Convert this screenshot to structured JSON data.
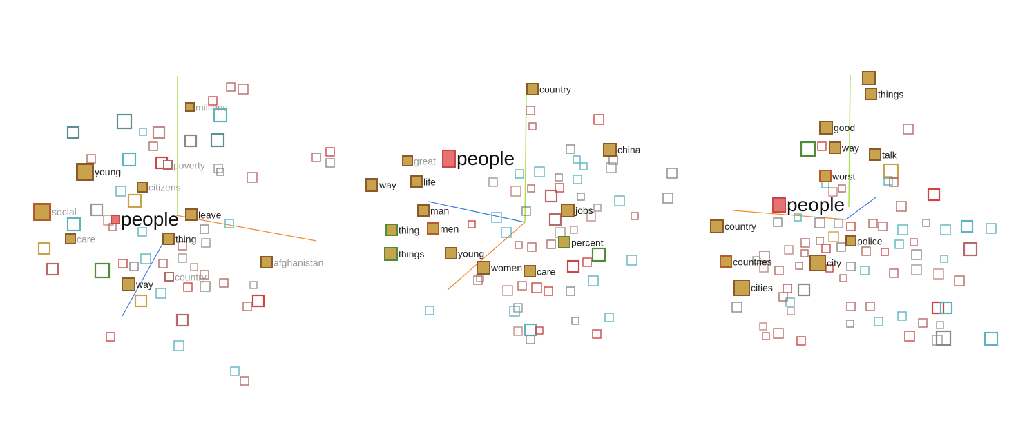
{
  "colors": {
    "gold_fill": "#c9a24e",
    "gold_border": "#8a5a2b",
    "green_border": "#4e8c3a",
    "teal": "#5fb3bf",
    "red_brown": "#b56a6a",
    "red": "#cc4444",
    "gray": "#888888",
    "axis_x": "#f08a2c",
    "axis_y": "#a7e04a",
    "axis_z": "#3a7be0"
  },
  "panels": [
    {
      "id": "left",
      "words": [
        {
          "label": "people",
          "style": "focus",
          "kind": "focus"
        },
        {
          "label": "millions",
          "style": "dim",
          "kind": "gold"
        },
        {
          "label": "young",
          "style": "dark",
          "kind": "gold"
        },
        {
          "label": "poverty",
          "style": "dim",
          "kind": "gold"
        },
        {
          "label": "citizens",
          "style": "dim",
          "kind": "gold"
        },
        {
          "label": "social",
          "style": "dim",
          "kind": "gold"
        },
        {
          "label": "leave",
          "style": "dark",
          "kind": "gold"
        },
        {
          "label": "care",
          "style": "dim",
          "kind": "gold"
        },
        {
          "label": "thing",
          "style": "dark",
          "kind": "gold"
        },
        {
          "label": "afghanistan",
          "style": "dim",
          "kind": "gold"
        },
        {
          "label": "country",
          "style": "dim",
          "kind": "gold"
        },
        {
          "label": "way",
          "style": "dark",
          "kind": "gold"
        }
      ]
    },
    {
      "id": "middle",
      "words": [
        {
          "label": "country",
          "style": "dark",
          "kind": "gold"
        },
        {
          "label": "china",
          "style": "dark",
          "kind": "gold"
        },
        {
          "label": "people",
          "style": "focus",
          "kind": "focus"
        },
        {
          "label": "great",
          "style": "dim",
          "kind": "gold"
        },
        {
          "label": "way",
          "style": "dark",
          "kind": "gold"
        },
        {
          "label": "life",
          "style": "dark",
          "kind": "gold"
        },
        {
          "label": "jobs",
          "style": "dark",
          "kind": "gold"
        },
        {
          "label": "man",
          "style": "dark",
          "kind": "gold"
        },
        {
          "label": "men",
          "style": "dark",
          "kind": "gold"
        },
        {
          "label": "thing",
          "style": "dark",
          "kind": "green"
        },
        {
          "label": "percent",
          "style": "dark",
          "kind": "green"
        },
        {
          "label": "things",
          "style": "dark",
          "kind": "green"
        },
        {
          "label": "young",
          "style": "dark",
          "kind": "gold"
        },
        {
          "label": "women",
          "style": "dark",
          "kind": "gold"
        },
        {
          "label": "care",
          "style": "dark",
          "kind": "gold"
        }
      ]
    },
    {
      "id": "right",
      "words": [
        {
          "label": "things",
          "style": "dark",
          "kind": "gold"
        },
        {
          "label": "good",
          "style": "dark",
          "kind": "gold"
        },
        {
          "label": "way",
          "style": "dark",
          "kind": "gold"
        },
        {
          "label": "talk",
          "style": "dark",
          "kind": "gold"
        },
        {
          "label": "worst",
          "style": "dark",
          "kind": "gold"
        },
        {
          "label": "people",
          "style": "focus",
          "kind": "focus"
        },
        {
          "label": "country",
          "style": "dark",
          "kind": "gold"
        },
        {
          "label": "police",
          "style": "dark",
          "kind": "gold"
        },
        {
          "label": "countries",
          "style": "dark",
          "kind": "gold"
        },
        {
          "label": "city",
          "style": "dark",
          "kind": "gold"
        },
        {
          "label": "cities",
          "style": "dark",
          "kind": "gold"
        }
      ]
    }
  ]
}
